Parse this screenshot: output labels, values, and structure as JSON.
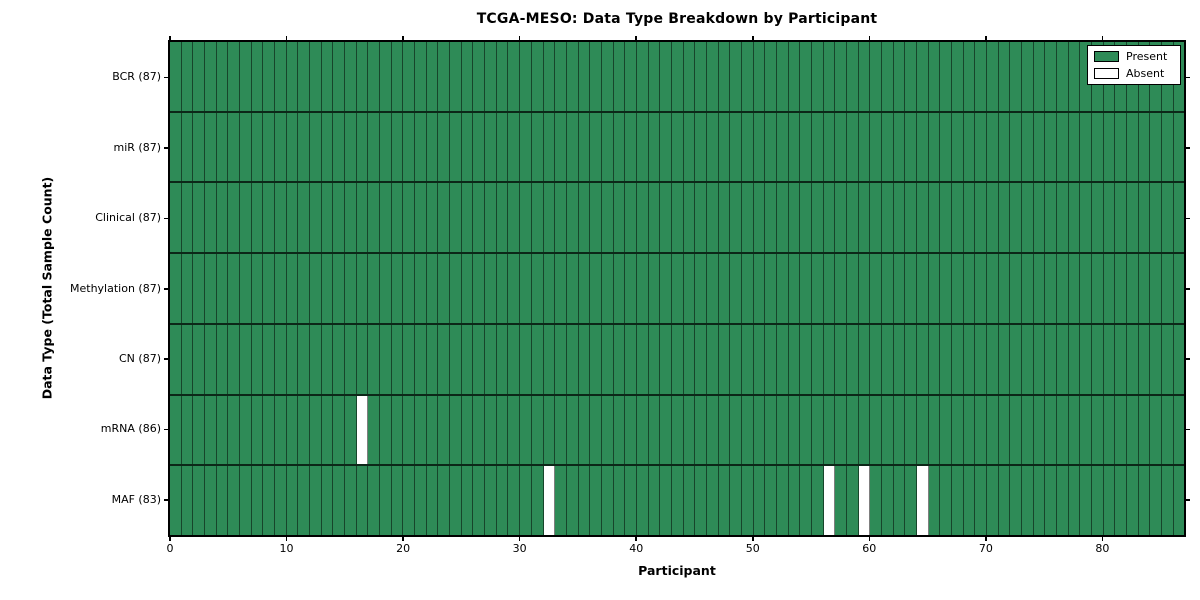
{
  "chart_data": {
    "type": "heatmap",
    "title": "TCGA-MESO: Data Type Breakdown by Participant",
    "xlabel": "Participant",
    "ylabel": "Data Type (Total Sample Count)",
    "x_ticks": [
      0,
      10,
      20,
      30,
      40,
      50,
      60,
      70,
      80
    ],
    "xlim": [
      0,
      87
    ],
    "n_participants": 87,
    "grid": "cell-borders",
    "legend_position": "upper-right",
    "legend": [
      {
        "label": "Present",
        "color": "#2e8b57"
      },
      {
        "label": "Absent",
        "color": "#ffffff"
      }
    ],
    "rows": [
      {
        "label": "BCR (87)",
        "data_type": "BCR",
        "total": 87,
        "absent_participants": []
      },
      {
        "label": "miR (87)",
        "data_type": "miR",
        "total": 87,
        "absent_participants": []
      },
      {
        "label": "Clinical (87)",
        "data_type": "Clinical",
        "total": 87,
        "absent_participants": []
      },
      {
        "label": "Methylation (87)",
        "data_type": "Methylation",
        "total": 87,
        "absent_participants": []
      },
      {
        "label": "CN (87)",
        "data_type": "CN",
        "total": 87,
        "absent_participants": []
      },
      {
        "label": "mRNA (86)",
        "data_type": "mRNA",
        "total": 86,
        "absent_participants": [
          16
        ]
      },
      {
        "label": "MAF (83)",
        "data_type": "MAF",
        "total": 83,
        "absent_participants": [
          32,
          56,
          59,
          64
        ]
      }
    ],
    "colors": {
      "present": "#2e8b57",
      "absent": "#ffffff",
      "cell_edge": "rgba(0,0,0,0.5)",
      "row_divider": "rgba(0,0,0,0.72)",
      "axis": "#000000",
      "background": "#ffffff"
    }
  }
}
